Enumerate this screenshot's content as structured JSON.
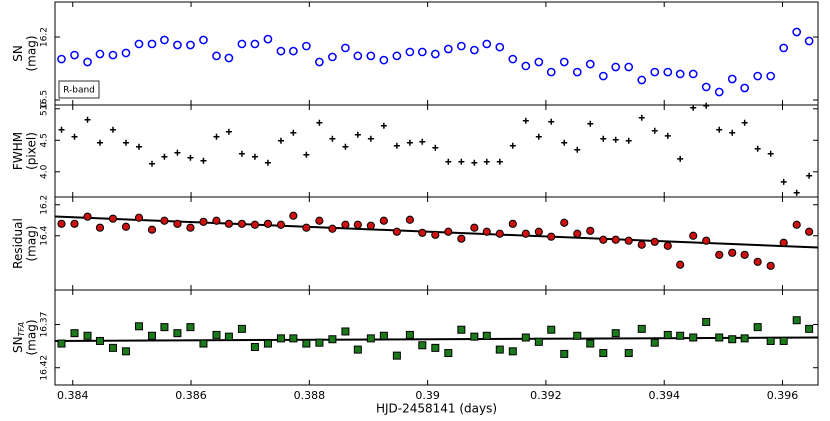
{
  "chart_data": [
    {
      "type": "scatter",
      "ylabel": {
        "name": "SN",
        "unit": "(mag)"
      },
      "annotation": "R-band",
      "marker": "circle",
      "color": "#0000ff",
      "facecolor": "none",
      "xlim": [
        0.3837,
        0.3966
      ],
      "xticks": [
        0.384,
        0.386,
        0.388,
        0.39,
        0.392,
        0.394,
        0.396
      ],
      "ylim": [
        16.524,
        16.033
      ],
      "yticks": [
        16.2,
        16.5
      ],
      "x": [
        0.38381,
        0.38403,
        0.38425,
        0.38446,
        0.38468,
        0.3849,
        0.38512,
        0.38534,
        0.38555,
        0.38577,
        0.38599,
        0.38621,
        0.38643,
        0.38664,
        0.38686,
        0.38708,
        0.3873,
        0.38752,
        0.38773,
        0.38795,
        0.38817,
        0.38839,
        0.38861,
        0.38882,
        0.38904,
        0.38926,
        0.38948,
        0.3897,
        0.38991,
        0.39013,
        0.39035,
        0.39057,
        0.39079,
        0.391,
        0.39122,
        0.39144,
        0.39166,
        0.39188,
        0.39209,
        0.39231,
        0.39253,
        0.39275,
        0.39297,
        0.39318,
        0.3934,
        0.39362,
        0.39384,
        0.39406,
        0.39427,
        0.39449,
        0.39471,
        0.39493,
        0.39515,
        0.39536,
        0.39558,
        0.3958,
        0.39602,
        0.39624,
        0.39645
      ],
      "values": [
        16.305,
        16.286,
        16.319,
        16.281,
        16.286,
        16.276,
        16.233,
        16.233,
        16.214,
        16.238,
        16.238,
        16.214,
        16.29,
        16.3,
        16.233,
        16.233,
        16.21,
        16.267,
        16.267,
        16.243,
        16.319,
        16.295,
        16.252,
        16.29,
        16.29,
        16.31,
        16.29,
        16.271,
        16.271,
        16.281,
        16.257,
        16.243,
        16.262,
        16.233,
        16.248,
        16.305,
        16.338,
        16.319,
        16.367,
        16.319,
        16.367,
        16.329,
        16.386,
        16.343,
        16.343,
        16.405,
        16.367,
        16.367,
        16.376,
        16.376,
        16.438,
        16.462,
        16.4,
        16.443,
        16.386,
        16.386,
        16.252,
        16.176,
        16.219
      ]
    },
    {
      "type": "scatter",
      "ylabel": {
        "name": "FWHM",
        "unit": "(pixel)"
      },
      "marker": "plus",
      "color": "#000000",
      "facecolor": "none",
      "xlim": [
        0.3837,
        0.3966
      ],
      "xticks": [
        0.384,
        0.386,
        0.388,
        0.39,
        0.392,
        0.394,
        0.396
      ],
      "ylim": [
        3.6,
        5.06
      ],
      "yticks": [
        {
          "value": 4,
          "label": "4.0"
        },
        4.5,
        {
          "value": 5,
          "label": "5.0"
        }
      ],
      "x": [
        0.38381,
        0.38403,
        0.38425,
        0.38446,
        0.38468,
        0.3849,
        0.38512,
        0.38534,
        0.38555,
        0.38577,
        0.38599,
        0.38621,
        0.38643,
        0.38664,
        0.38686,
        0.38708,
        0.3873,
        0.38752,
        0.38773,
        0.38795,
        0.38817,
        0.38839,
        0.38861,
        0.38882,
        0.38904,
        0.38926,
        0.38948,
        0.3897,
        0.38991,
        0.39013,
        0.39035,
        0.39057,
        0.39079,
        0.391,
        0.39122,
        0.39144,
        0.39166,
        0.39188,
        0.39209,
        0.39231,
        0.39253,
        0.39275,
        0.39297,
        0.39318,
        0.3934,
        0.39362,
        0.39384,
        0.39406,
        0.39427,
        0.39449,
        0.39471,
        0.39493,
        0.39515,
        0.39536,
        0.39558,
        0.3958,
        0.39602,
        0.39624,
        0.39645
      ],
      "values": [
        4.667,
        4.556,
        4.825,
        4.46,
        4.667,
        4.46,
        4.397,
        4.127,
        4.238,
        4.302,
        4.222,
        4.175,
        4.556,
        4.635,
        4.286,
        4.238,
        4.143,
        4.492,
        4.619,
        4.27,
        4.778,
        4.524,
        4.397,
        4.587,
        4.524,
        4.73,
        4.413,
        4.46,
        4.476,
        4.381,
        4.159,
        4.159,
        4.143,
        4.159,
        4.159,
        4.413,
        4.81,
        4.556,
        4.794,
        4.46,
        4.349,
        4.762,
        4.524,
        4.508,
        4.492,
        4.857,
        4.651,
        4.571,
        4.206,
        5.016,
        5.048,
        4.667,
        4.619,
        4.778,
        4.365,
        4.286,
        3.84,
        3.667,
        3.937
      ]
    },
    {
      "type": "scatter",
      "ylabel": {
        "name": "Residual",
        "unit": "(mag)"
      },
      "marker": "circle",
      "color": "#000000",
      "facecolor": "#cc1111",
      "xlim": [
        0.3837,
        0.3966
      ],
      "xticks": [
        0.384,
        0.386,
        0.388,
        0.39,
        0.392,
        0.394,
        0.396
      ],
      "ylim": [
        16.75,
        16.15
      ],
      "yticks": [
        16.2,
        16.4
      ],
      "x": [
        0.38381,
        0.38403,
        0.38425,
        0.38446,
        0.38468,
        0.3849,
        0.38512,
        0.38534,
        0.38555,
        0.38577,
        0.38599,
        0.38621,
        0.38643,
        0.38664,
        0.38686,
        0.38708,
        0.3873,
        0.38752,
        0.38773,
        0.38795,
        0.38817,
        0.38839,
        0.38861,
        0.38882,
        0.38904,
        0.38926,
        0.38948,
        0.3897,
        0.38991,
        0.39013,
        0.39035,
        0.39057,
        0.39079,
        0.391,
        0.39122,
        0.39144,
        0.39166,
        0.39188,
        0.39209,
        0.39231,
        0.39253,
        0.39275,
        0.39297,
        0.39318,
        0.3934,
        0.39362,
        0.39384,
        0.39406,
        0.39427,
        0.39449,
        0.39471,
        0.39493,
        0.39515,
        0.39536,
        0.39558,
        0.3958,
        0.39602,
        0.39624,
        0.39645
      ],
      "values": [
        16.323,
        16.323,
        16.277,
        16.348,
        16.29,
        16.342,
        16.284,
        16.361,
        16.303,
        16.323,
        16.348,
        16.31,
        16.303,
        16.323,
        16.323,
        16.329,
        16.323,
        16.329,
        16.271,
        16.348,
        16.303,
        16.355,
        16.329,
        16.329,
        16.335,
        16.303,
        16.374,
        16.297,
        16.381,
        16.394,
        16.374,
        16.419,
        16.348,
        16.374,
        16.387,
        16.323,
        16.387,
        16.374,
        16.406,
        16.316,
        16.387,
        16.368,
        16.426,
        16.426,
        16.432,
        16.458,
        16.439,
        16.465,
        16.587,
        16.4,
        16.432,
        16.523,
        16.51,
        16.523,
        16.568,
        16.594,
        16.445,
        16.329,
        16.374
      ],
      "fit": {
        "x": [
          0.3837,
          0.3966
        ],
        "values": [
          16.276,
          16.476
        ]
      }
    },
    {
      "type": "scatter",
      "ylabel": {
        "name": "SN",
        "subscript": "TFA",
        "unit": "(mag)"
      },
      "marker": "square",
      "color": "#000000",
      "facecolor": "#1c7a1c",
      "xlim": [
        0.3837,
        0.3966
      ],
      "xticks": [
        0.384,
        0.386,
        0.388,
        0.39,
        0.392,
        0.394,
        0.396
      ],
      "xticklabels": true,
      "xlabel": "HJD-2458141 (days)",
      "ylim": [
        16.44,
        16.33
      ],
      "yticks": [
        16.37,
        16.42
      ],
      "x": [
        0.38381,
        0.38403,
        0.38425,
        0.38446,
        0.38468,
        0.3849,
        0.38512,
        0.38534,
        0.38555,
        0.38577,
        0.38599,
        0.38621,
        0.38643,
        0.38664,
        0.38686,
        0.38708,
        0.3873,
        0.38752,
        0.38773,
        0.38795,
        0.38817,
        0.38839,
        0.38861,
        0.38882,
        0.38904,
        0.38926,
        0.38948,
        0.3897,
        0.38991,
        0.39013,
        0.39035,
        0.39057,
        0.39079,
        0.391,
        0.39122,
        0.39144,
        0.39166,
        0.39188,
        0.39209,
        0.39231,
        0.39253,
        0.39275,
        0.39297,
        0.39318,
        0.3934,
        0.39362,
        0.39384,
        0.39406,
        0.39427,
        0.39449,
        0.39471,
        0.39493,
        0.39515,
        0.39536,
        0.39558,
        0.3958,
        0.39602,
        0.39624,
        0.39645
      ],
      "values": [
        16.392,
        16.38,
        16.383,
        16.389,
        16.397,
        16.401,
        16.372,
        16.383,
        16.373,
        16.38,
        16.373,
        16.392,
        16.382,
        16.384,
        16.375,
        16.396,
        16.392,
        16.386,
        16.386,
        16.392,
        16.391,
        16.387,
        16.378,
        16.399,
        16.386,
        16.383,
        16.406,
        16.382,
        16.394,
        16.397,
        16.403,
        16.376,
        16.384,
        16.383,
        16.399,
        16.401,
        16.385,
        16.39,
        16.376,
        16.404,
        16.383,
        16.392,
        16.403,
        16.38,
        16.403,
        16.375,
        16.391,
        16.382,
        16.383,
        16.385,
        16.367,
        16.385,
        16.387,
        16.386,
        16.373,
        16.389,
        16.389,
        16.365,
        16.375
      ],
      "fit": {
        "x": [
          0.3837,
          0.3966
        ],
        "values": [
          16.389,
          16.385
        ]
      }
    }
  ]
}
